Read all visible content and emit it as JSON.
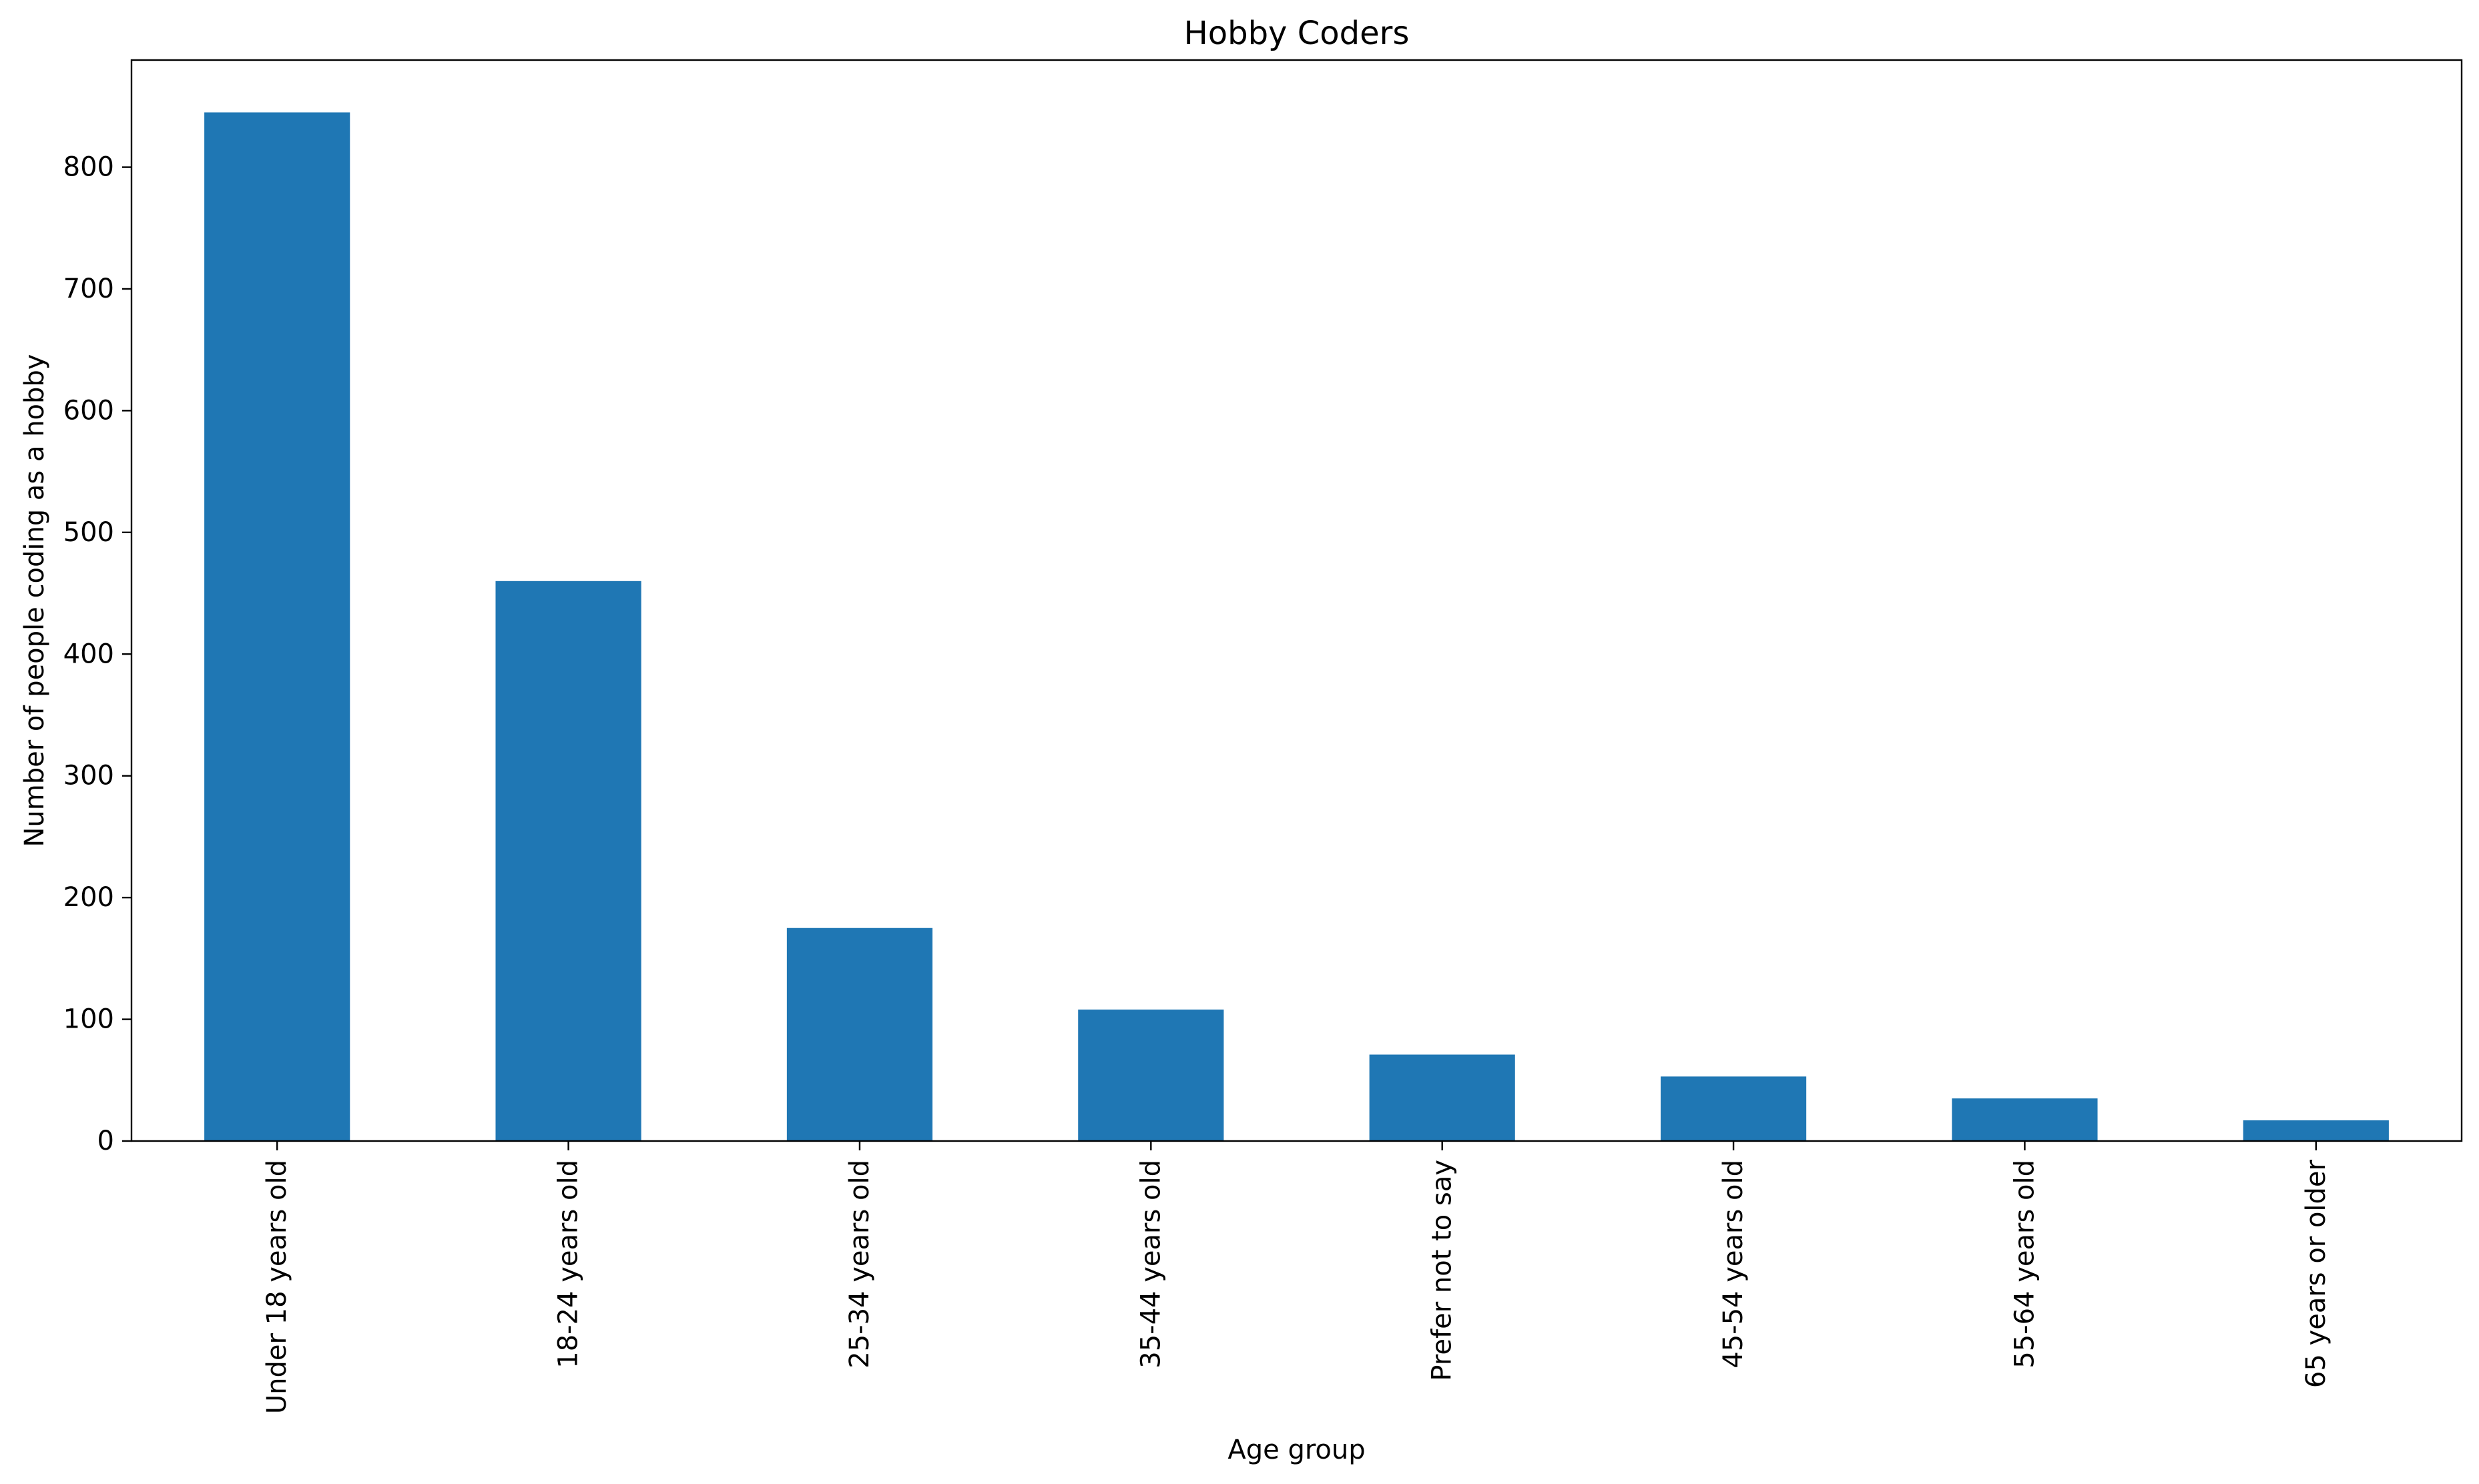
{
  "chart_data": {
    "type": "bar",
    "title": "Hobby Coders",
    "xlabel": "Age group",
    "ylabel": "Number of people coding as a hobby",
    "categories": [
      "Under 18 years old",
      "18-24 years old",
      "25-34 years old",
      "35-44 years old",
      "Prefer not to say",
      "45-54 years old",
      "55-64 years old",
      "65 years or older"
    ],
    "values": [
      845,
      460,
      175,
      108,
      71,
      53,
      35,
      17
    ],
    "ylim": [
      0,
      888
    ],
    "yticks": [
      0,
      100,
      200,
      300,
      400,
      500,
      600,
      700,
      800
    ],
    "grid": false,
    "legend": "none",
    "bar_color": "#1f77b4"
  }
}
